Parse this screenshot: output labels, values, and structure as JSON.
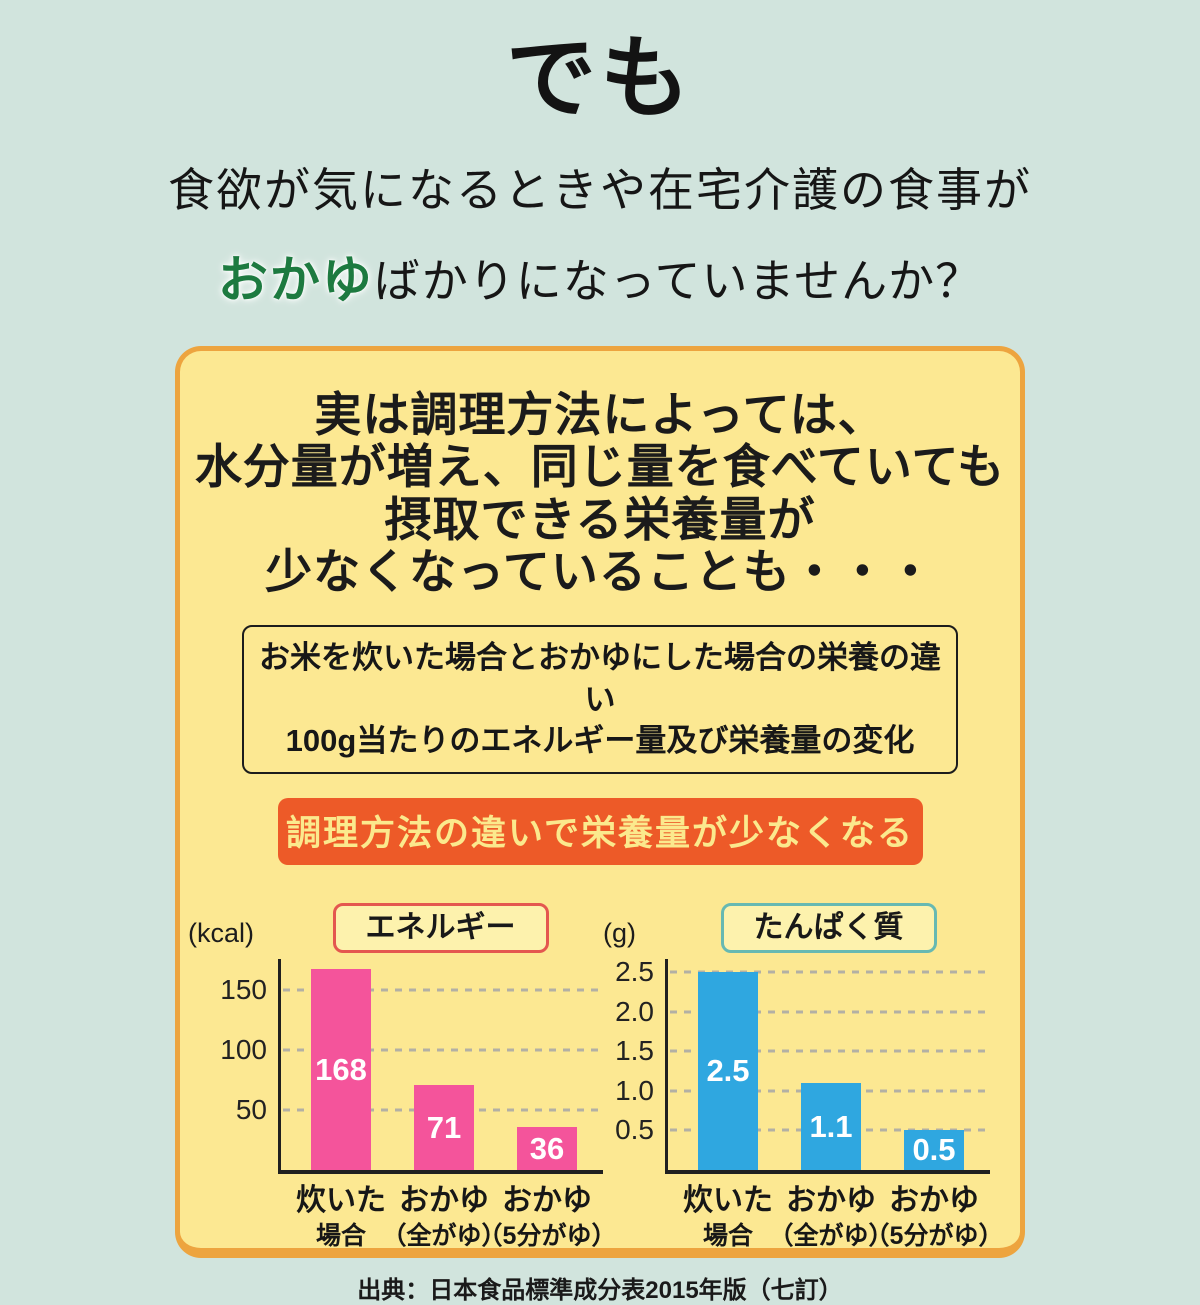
{
  "hero": {
    "title": "でも",
    "subline1": "食欲が気になるときや在宅介護の食事が",
    "highlight": "おかゆ",
    "subline2_rest": "ばかりになっていませんか？",
    "highlight_color": "#1d7a40"
  },
  "card": {
    "headline_lines": [
      "実は調理方法によっては、",
      "水分量が増え、同じ量を食べていても",
      "摂取できる栄養量が",
      "少なくなっていることも・・・"
    ],
    "info_box_lines": [
      "お米を炊いた場合とおかゆにした場合の栄養の違い",
      "100g当たりのエネルギー量及び栄養量の変化"
    ],
    "banner_label": "調理方法の違いで栄養量が少なくなる",
    "source": "出典：日本食品標準成分表2015年版（七訂）",
    "colors": {
      "card_background": "#fce892",
      "card_border": "#eda43f",
      "banner_background": "#ed5a28",
      "banner_text": "#fbe98d",
      "page_background": "#d1e4dd"
    }
  },
  "chart_data": [
    {
      "type": "bar",
      "title": "エネルギー",
      "unit": "(kcal)",
      "categories": [
        [
          "炊いた",
          "場合"
        ],
        [
          "おかゆ",
          "（全がゆ）"
        ],
        [
          "おかゆ",
          "（5分がゆ）"
        ]
      ],
      "values": [
        168,
        71,
        36
      ],
      "data_labels": [
        "168",
        "71",
        "36"
      ],
      "bar_color": "#f4549b",
      "title_border_color": "#e4574f",
      "yticks": [
        {
          "label": "50",
          "value": 50
        },
        {
          "label": "100",
          "value": 100
        },
        {
          "label": "150",
          "value": 150
        }
      ],
      "ylim": [
        0,
        180
      ],
      "grid": "dotted-horizontal",
      "legend_position": "none"
    },
    {
      "type": "bar",
      "title": "たんぱく質",
      "unit": "(g)",
      "categories": [
        [
          "炊いた",
          "場合"
        ],
        [
          "おかゆ",
          "（全がゆ）"
        ],
        [
          "おかゆ",
          "（5分がゆ）"
        ]
      ],
      "values": [
        2.5,
        1.1,
        0.5
      ],
      "data_labels": [
        "2.5",
        "1.1",
        "0.5"
      ],
      "bar_color": "#2fa7e0",
      "title_border_color": "#67b9b2",
      "yticks": [
        {
          "label": "0.5",
          "value": 0.5
        },
        {
          "label": "1.0",
          "value": 1.0
        },
        {
          "label": "1.5",
          "value": 1.5
        },
        {
          "label": "2.0",
          "value": 2.0
        },
        {
          "label": "2.5",
          "value": 2.5
        }
      ],
      "ylim": [
        0,
        2.72
      ],
      "grid": "dotted-horizontal",
      "legend_position": "none"
    }
  ]
}
